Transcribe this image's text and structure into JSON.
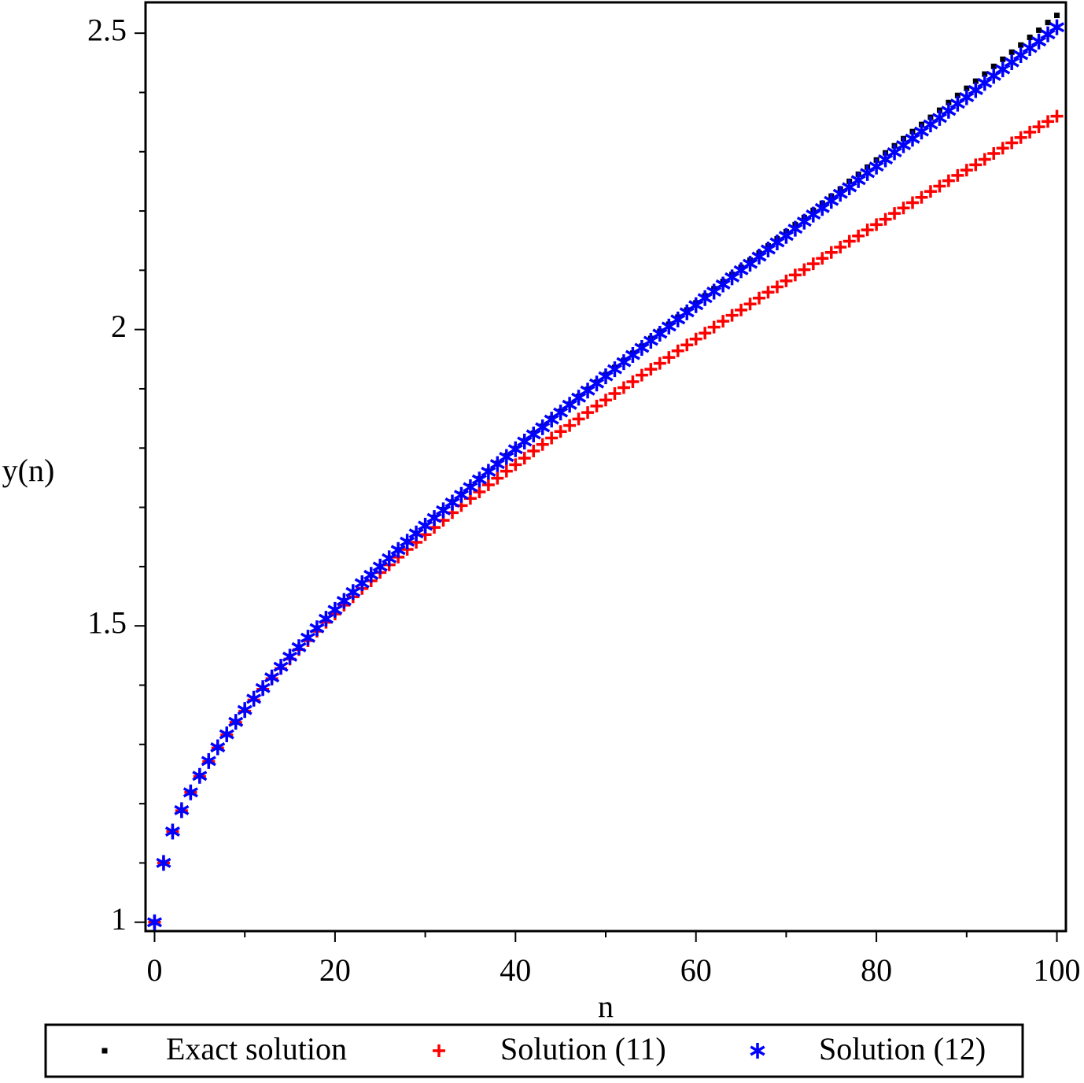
{
  "chart_data": {
    "type": "scatter",
    "x_label": "n",
    "y_label": "y(n)",
    "xlim": [
      -1,
      101
    ],
    "ylim": [
      0.985,
      2.552
    ],
    "xticks": [
      0,
      20,
      40,
      60,
      80,
      100
    ],
    "xminorticks": [
      10,
      30,
      50,
      70,
      90
    ],
    "yticks": [
      1,
      1.5,
      2,
      2.5
    ],
    "yminorticks": [
      1.1,
      1.2,
      1.3,
      1.4,
      1.6,
      1.7,
      1.8,
      1.9,
      2.1,
      2.2,
      2.3,
      2.4
    ],
    "legend": "bottom",
    "x": [
      0,
      1,
      2,
      3,
      4,
      5,
      6,
      7,
      8,
      9,
      10,
      11,
      12,
      13,
      14,
      15,
      16,
      17,
      18,
      19,
      20,
      21,
      22,
      23,
      24,
      25,
      26,
      27,
      28,
      29,
      30,
      31,
      32,
      33,
      34,
      35,
      36,
      37,
      38,
      39,
      40,
      41,
      42,
      43,
      44,
      45,
      46,
      47,
      48,
      49,
      50,
      51,
      52,
      53,
      54,
      55,
      56,
      57,
      58,
      59,
      60,
      61,
      62,
      63,
      64,
      65,
      66,
      67,
      68,
      69,
      70,
      71,
      72,
      73,
      74,
      75,
      76,
      77,
      78,
      79,
      80,
      81,
      82,
      83,
      84,
      85,
      86,
      87,
      88,
      89,
      90,
      91,
      92,
      93,
      94,
      95,
      96,
      97,
      98,
      99,
      100
    ],
    "series": [
      {
        "name": "Exact solution",
        "color": "#000000",
        "marker": "square",
        "values": [
          1,
          1.1,
          1.153,
          1.189,
          1.219,
          1.247,
          1.272,
          1.295,
          1.317,
          1.338,
          1.358,
          1.377,
          1.395,
          1.413,
          1.431,
          1.448,
          1.464,
          1.48,
          1.496,
          1.512,
          1.527,
          1.542,
          1.557,
          1.572,
          1.586,
          1.6,
          1.614,
          1.628,
          1.642,
          1.656,
          1.669,
          1.683,
          1.696,
          1.709,
          1.722,
          1.735,
          1.748,
          1.761,
          1.774,
          1.787,
          1.799,
          1.812,
          1.825,
          1.837,
          1.85,
          1.862,
          1.874,
          1.887,
          1.899,
          1.911,
          1.924,
          1.936,
          1.948,
          1.96,
          1.972,
          1.985,
          1.997,
          2.009,
          2.021,
          2.033,
          2.045,
          2.057,
          2.069,
          2.081,
          2.093,
          2.105,
          2.117,
          2.129,
          2.141,
          2.153,
          2.165,
          2.177,
          2.189,
          2.201,
          2.213,
          2.225,
          2.237,
          2.25,
          2.262,
          2.274,
          2.286,
          2.298,
          2.31,
          2.322,
          2.334,
          2.346,
          2.358,
          2.37,
          2.383,
          2.395,
          2.407,
          2.419,
          2.431,
          2.444,
          2.456,
          2.468,
          2.48,
          2.493,
          2.505,
          2.518,
          2.53
        ]
      },
      {
        "name": "Solution (11)",
        "color": "#ff0000",
        "marker": "plus",
        "values": [
          1,
          1.1,
          1.153,
          1.188,
          1.219,
          1.246,
          1.271,
          1.294,
          1.316,
          1.337,
          1.356,
          1.375,
          1.393,
          1.411,
          1.428,
          1.444,
          1.46,
          1.475,
          1.491,
          1.506,
          1.52,
          1.535,
          1.549,
          1.563,
          1.576,
          1.59,
          1.603,
          1.616,
          1.629,
          1.641,
          1.654,
          1.666,
          1.678,
          1.691,
          1.703,
          1.715,
          1.726,
          1.738,
          1.749,
          1.761,
          1.772,
          1.783,
          1.795,
          1.806,
          1.817,
          1.828,
          1.838,
          1.849,
          1.86,
          1.871,
          1.881,
          1.892,
          1.902,
          1.912,
          1.923,
          1.933,
          1.943,
          1.953,
          1.964,
          1.974,
          1.984,
          1.994,
          2.004,
          2.014,
          2.024,
          2.033,
          2.043,
          2.053,
          2.063,
          2.072,
          2.082,
          2.092,
          2.101,
          2.111,
          2.12,
          2.13,
          2.139,
          2.149,
          2.158,
          2.168,
          2.177,
          2.186,
          2.196,
          2.205,
          2.214,
          2.223,
          2.233,
          2.242,
          2.251,
          2.26,
          2.269,
          2.278,
          2.287,
          2.297,
          2.306,
          2.315,
          2.324,
          2.333,
          2.342,
          2.351,
          2.36
        ]
      },
      {
        "name": "Solution (12)",
        "color": "#0000ff",
        "marker": "star",
        "values": [
          1,
          1.1,
          1.153,
          1.189,
          1.219,
          1.247,
          1.272,
          1.295,
          1.317,
          1.338,
          1.358,
          1.377,
          1.395,
          1.413,
          1.431,
          1.448,
          1.464,
          1.48,
          1.496,
          1.512,
          1.527,
          1.542,
          1.557,
          1.572,
          1.586,
          1.6,
          1.614,
          1.628,
          1.642,
          1.656,
          1.669,
          1.682,
          1.695,
          1.708,
          1.721,
          1.734,
          1.747,
          1.76,
          1.773,
          1.785,
          1.798,
          1.811,
          1.823,
          1.835,
          1.848,
          1.86,
          1.873,
          1.885,
          1.897,
          1.909,
          1.921,
          1.933,
          1.945,
          1.957,
          1.969,
          1.981,
          1.993,
          2.005,
          2.017,
          2.029,
          2.041,
          2.053,
          2.064,
          2.076,
          2.088,
          2.1,
          2.111,
          2.123,
          2.135,
          2.147,
          2.158,
          2.17,
          2.182,
          2.194,
          2.205,
          2.217,
          2.229,
          2.24,
          2.252,
          2.264,
          2.275,
          2.287,
          2.299,
          2.311,
          2.322,
          2.334,
          2.346,
          2.357,
          2.369,
          2.381,
          2.392,
          2.404,
          2.416,
          2.428,
          2.439,
          2.451,
          2.463,
          2.475,
          2.486,
          2.498,
          2.51
        ]
      }
    ]
  }
}
